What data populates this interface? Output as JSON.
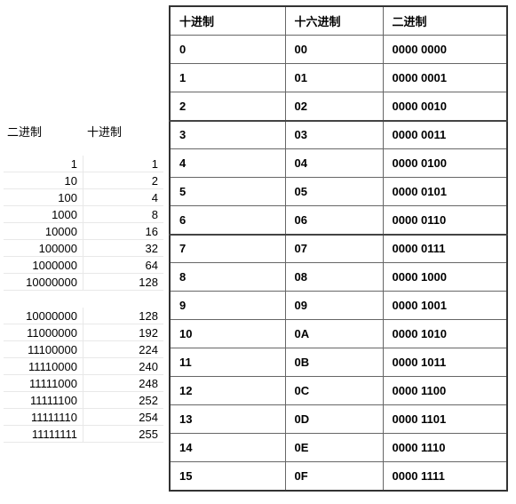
{
  "left_table": {
    "headers": [
      "二进制",
      "十进制"
    ],
    "rows_section1": [
      {
        "binary": "1",
        "decimal": "1"
      },
      {
        "binary": "10",
        "decimal": "2"
      },
      {
        "binary": "100",
        "decimal": "4"
      },
      {
        "binary": "1000",
        "decimal": "8"
      },
      {
        "binary": "10000",
        "decimal": "16"
      },
      {
        "binary": "100000",
        "decimal": "32"
      },
      {
        "binary": "1000000",
        "decimal": "64"
      },
      {
        "binary": "10000000",
        "decimal": "128"
      }
    ],
    "rows_section2": [
      {
        "binary": "10000000",
        "decimal": "128"
      },
      {
        "binary": "11000000",
        "decimal": "192"
      },
      {
        "binary": "11100000",
        "decimal": "224"
      },
      {
        "binary": "11110000",
        "decimal": "240"
      },
      {
        "binary": "11111000",
        "decimal": "248"
      },
      {
        "binary": "11111100",
        "decimal": "252"
      },
      {
        "binary": "11111110",
        "decimal": "254"
      },
      {
        "binary": "11111111",
        "decimal": "255"
      }
    ]
  },
  "right_table": {
    "headers": [
      "十进制",
      "十六进制",
      "二进制"
    ],
    "rows": [
      {
        "dec": "0",
        "hex": "00",
        "bin": "0000 0000"
      },
      {
        "dec": "1",
        "hex": "01",
        "bin": "0000 0001"
      },
      {
        "dec": "2",
        "hex": "02",
        "bin": "0000 0010"
      },
      {
        "dec": "3",
        "hex": "03",
        "bin": "0000 0011"
      },
      {
        "dec": "4",
        "hex": "04",
        "bin": "0000 0100"
      },
      {
        "dec": "5",
        "hex": "05",
        "bin": "0000 0101"
      },
      {
        "dec": "6",
        "hex": "06",
        "bin": "0000 0110"
      },
      {
        "dec": "7",
        "hex": "07",
        "bin": "0000 0111"
      },
      {
        "dec": "8",
        "hex": "08",
        "bin": "0000 1000"
      },
      {
        "dec": "9",
        "hex": "09",
        "bin": "0000 1001"
      },
      {
        "dec": "10",
        "hex": "0A",
        "bin": "0000 1010"
      },
      {
        "dec": "11",
        "hex": "0B",
        "bin": "0000 1011"
      },
      {
        "dec": "12",
        "hex": "0C",
        "bin": "0000 1100"
      },
      {
        "dec": "13",
        "hex": "0D",
        "bin": "0000 1101"
      },
      {
        "dec": "14",
        "hex": "0E",
        "bin": "0000 1110"
      },
      {
        "dec": "15",
        "hex": "0F",
        "bin": "0000 1111"
      }
    ],
    "divider_indices": [
      3,
      7
    ]
  },
  "colors": {
    "border": "#666666",
    "border_thick": "#333333",
    "left_border": "#e8e8e8",
    "text": "#000000",
    "background": "#ffffff"
  }
}
